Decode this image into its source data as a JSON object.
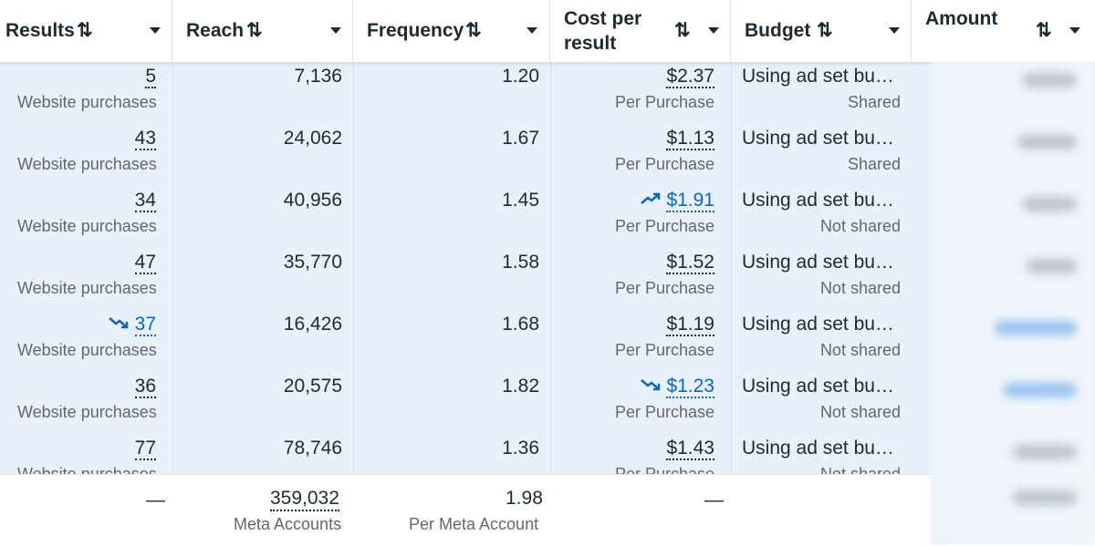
{
  "columns": {
    "results": {
      "title": "Results",
      "sort": "⇅"
    },
    "reach": {
      "title": "Reach",
      "sort": "⇅"
    },
    "frequency": {
      "title": "Frequency",
      "sort": "⇅"
    },
    "cost": {
      "title_line1": "Cost per",
      "title_line2": "result",
      "sort": "⇅"
    },
    "budget": {
      "title": "Budget",
      "sort": "⇅"
    },
    "amount": {
      "title": "Amount",
      "sort": "⇅"
    }
  },
  "rows": [
    {
      "results": "5",
      "results_sub": "Website purchases",
      "reach": "7,136",
      "frequency": "1.20",
      "cost": "$2.37",
      "cost_sub": "Per Purchase",
      "budget": "Using ad set bu…",
      "budget_sub": "Shared",
      "results_trend": "",
      "cost_trend": ""
    },
    {
      "results": "43",
      "results_sub": "Website purchases",
      "reach": "24,062",
      "frequency": "1.67",
      "cost": "$1.13",
      "cost_sub": "Per Purchase",
      "budget": "Using ad set bu…",
      "budget_sub": "Shared",
      "results_trend": "",
      "cost_trend": ""
    },
    {
      "results": "34",
      "results_sub": "Website purchases",
      "reach": "40,956",
      "frequency": "1.45",
      "cost": "$1.91",
      "cost_sub": "Per Purchase",
      "budget": "Using ad set bu…",
      "budget_sub": "Not shared",
      "results_trend": "",
      "cost_trend": "up"
    },
    {
      "results": "47",
      "results_sub": "Website purchases",
      "reach": "35,770",
      "frequency": "1.58",
      "cost": "$1.52",
      "cost_sub": "Per Purchase",
      "budget": "Using ad set bu…",
      "budget_sub": "Not shared",
      "results_trend": "",
      "cost_trend": ""
    },
    {
      "results": "37",
      "results_sub": "Website purchases",
      "reach": "16,426",
      "frequency": "1.68",
      "cost": "$1.19",
      "cost_sub": "Per Purchase",
      "budget": "Using ad set bu…",
      "budget_sub": "Not shared",
      "results_trend": "down",
      "cost_trend": ""
    },
    {
      "results": "36",
      "results_sub": "Website purchases",
      "reach": "20,575",
      "frequency": "1.82",
      "cost": "$1.23",
      "cost_sub": "Per Purchase",
      "budget": "Using ad set bu…",
      "budget_sub": "Not shared",
      "results_trend": "",
      "cost_trend": "down"
    },
    {
      "results": "77",
      "results_sub": "Website purchases",
      "reach": "78,746",
      "frequency": "1.36",
      "cost": "$1.43",
      "cost_sub": "Per Purchase",
      "budget": "Using ad set bu…",
      "budget_sub": "Not shared",
      "results_trend": "",
      "cost_trend": ""
    }
  ],
  "totals": {
    "results": "—",
    "reach": "359,032",
    "reach_sub": "Meta Accounts",
    "frequency": "1.98",
    "frequency_sub": "Per Meta Account",
    "cost": "—"
  },
  "colors": {
    "text": "#1c2b33",
    "muted": "#65676b",
    "accent": "#0a66c2",
    "row_bg": "#e8f0fa"
  }
}
